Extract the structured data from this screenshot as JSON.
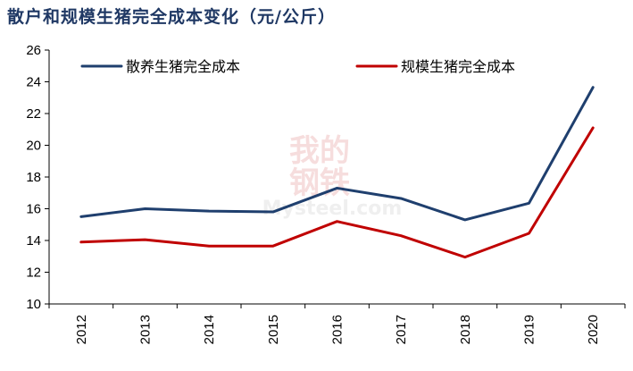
{
  "title": "散户和规模生猪完全成本变化（元/公斤）",
  "chart_data": {
    "type": "line",
    "categories": [
      "2012",
      "2013",
      "2014",
      "2015",
      "2016",
      "2017",
      "2018",
      "2019",
      "2020"
    ],
    "series": [
      {
        "name": "散养生猪完全成本",
        "color": "#1f3f6e",
        "values": [
          15.5,
          16.0,
          15.85,
          15.8,
          17.3,
          16.65,
          15.3,
          16.35,
          23.65
        ]
      },
      {
        "name": "规模生猪完全成本",
        "color": "#c00000",
        "values": [
          13.9,
          14.05,
          13.65,
          13.65,
          15.2,
          14.3,
          12.95,
          14.45,
          21.1
        ]
      }
    ],
    "yticks": [
      10,
      12,
      14,
      16,
      18,
      20,
      22,
      24,
      26
    ],
    "ylim": [
      10,
      26
    ],
    "grid": false,
    "legend_position": "top"
  },
  "watermark": {
    "line1": "我的",
    "line2": "钢铁",
    "line3": "Mysteel.com"
  }
}
